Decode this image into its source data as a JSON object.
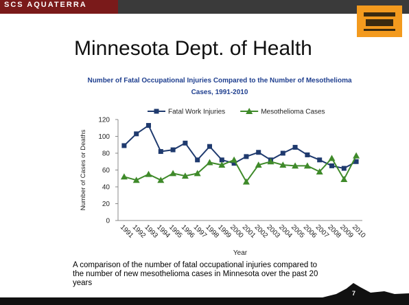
{
  "brand": "SCS AQUATERRA",
  "slide_title": "Minnesota Dept. of Health",
  "caption": "A comparison of the number of fatal occupational injuries compared to the number of new mesothelioma cases in Minnesota over the past 20 years",
  "page_number": "7",
  "chart_data": {
    "type": "line",
    "title": "Number of Fatal Occupational Injuries Compared to the Number of Mesothelioma Cases, 1991-2010",
    "x_label": "Year",
    "y_label": "Number of Cases or Deaths",
    "categories": [
      "1991",
      "1992",
      "1993",
      "1994",
      "1995",
      "1996",
      "1997",
      "1998",
      "1999",
      "2000",
      "2001",
      "2002",
      "2003",
      "2004",
      "2005",
      "2006",
      "2007",
      "2008",
      "2009",
      "2010"
    ],
    "series": [
      {
        "name": "Fatal Work Injuries",
        "color": "#1f3a6e",
        "marker": "square",
        "values": [
          89,
          103,
          113,
          82,
          84,
          92,
          72,
          88,
          72,
          68,
          76,
          81,
          72,
          80,
          87,
          78,
          72,
          65,
          62,
          70
        ]
      },
      {
        "name": "Mesothelioma Cases",
        "color": "#3f8a2a",
        "marker": "triangle",
        "values": [
          52,
          48,
          55,
          48,
          56,
          53,
          56,
          69,
          66,
          72,
          46,
          66,
          70,
          66,
          65,
          65,
          58,
          74,
          49,
          77
        ]
      }
    ],
    "ylim": [
      0,
      120
    ],
    "yticks": [
      0,
      20,
      40,
      60,
      80,
      100,
      120
    ],
    "grid": false,
    "legend": "top"
  }
}
